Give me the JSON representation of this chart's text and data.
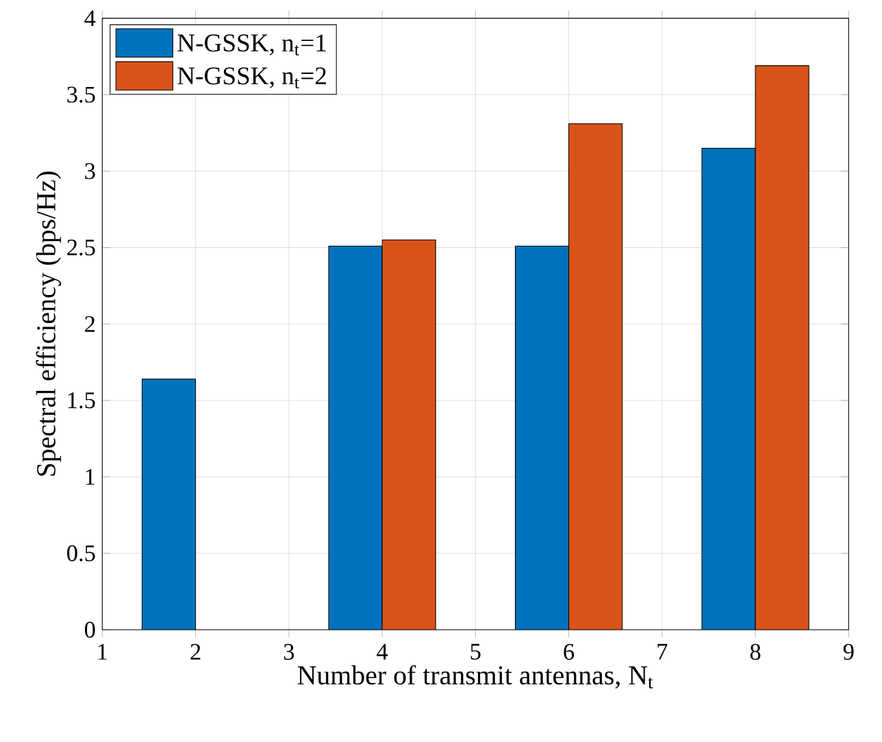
{
  "chart_data": {
    "type": "bar",
    "xlabel": "Number of transmit antennas, N$_{t}$",
    "ylabel": "Spectral efficiency (bps/Hz)",
    "x": [
      2,
      4,
      6,
      8
    ],
    "series": [
      {
        "name": "N-GSSK, n$_{t}$=1",
        "color": "#0072bd",
        "values": [
          1.64,
          2.51,
          2.51,
          3.15
        ]
      },
      {
        "name": "N-GSSK, n$_{t}$=2",
        "color": "#d95319",
        "values": [
          null,
          2.55,
          3.31,
          3.69
        ]
      }
    ],
    "xlim": [
      1,
      9
    ],
    "xticks": [
      1,
      2,
      3,
      4,
      5,
      6,
      7,
      8,
      9
    ],
    "ylim": [
      0,
      4
    ],
    "yticks": [
      0,
      0.5,
      1,
      1.5,
      2,
      2.5,
      3,
      3.5,
      4
    ],
    "grid": true,
    "legend": "top left"
  }
}
